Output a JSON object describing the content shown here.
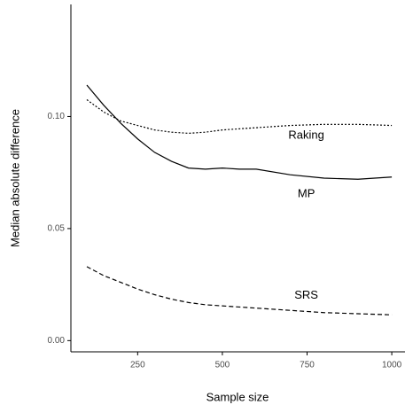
{
  "chart_data": {
    "type": "line",
    "x_label": "Sample size",
    "y_label": "Median absolute difference",
    "x": [
      100,
      150,
      200,
      250,
      300,
      350,
      400,
      450,
      500,
      550,
      600,
      700,
      800,
      900,
      1000
    ],
    "series": [
      {
        "name": "Raking",
        "color": "#000000",
        "linestyle": "dotted",
        "values": [
          0.1075,
          0.102,
          0.098,
          0.096,
          0.094,
          0.093,
          0.0925,
          0.093,
          0.094,
          0.0945,
          0.095,
          0.096,
          0.0965,
          0.0965,
          0.096
        ]
      },
      {
        "name": "MP",
        "color": "#000000",
        "linestyle": "solid",
        "values": [
          0.114,
          0.105,
          0.097,
          0.09,
          0.084,
          0.08,
          0.077,
          0.0765,
          0.077,
          0.0765,
          0.0765,
          0.074,
          0.0725,
          0.072,
          0.073
        ]
      },
      {
        "name": "SRS",
        "color": "#000000",
        "linestyle": "dashed",
        "values": [
          0.033,
          0.029,
          0.026,
          0.023,
          0.0205,
          0.0185,
          0.017,
          0.016,
          0.0155,
          0.015,
          0.0145,
          0.0135,
          0.0125,
          0.012,
          0.0115
        ]
      }
    ],
    "xlim": [
      53,
      1039
    ],
    "ylim": [
      -0.005,
      0.15
    ],
    "xticks": [
      250,
      500,
      750,
      1000
    ],
    "yticks": [
      {
        "value": 0,
        "label": "0.00"
      },
      {
        "value": 0.05,
        "label": "0.05"
      },
      {
        "value": 0.1,
        "label": "0.10"
      }
    ],
    "grid": false
  }
}
